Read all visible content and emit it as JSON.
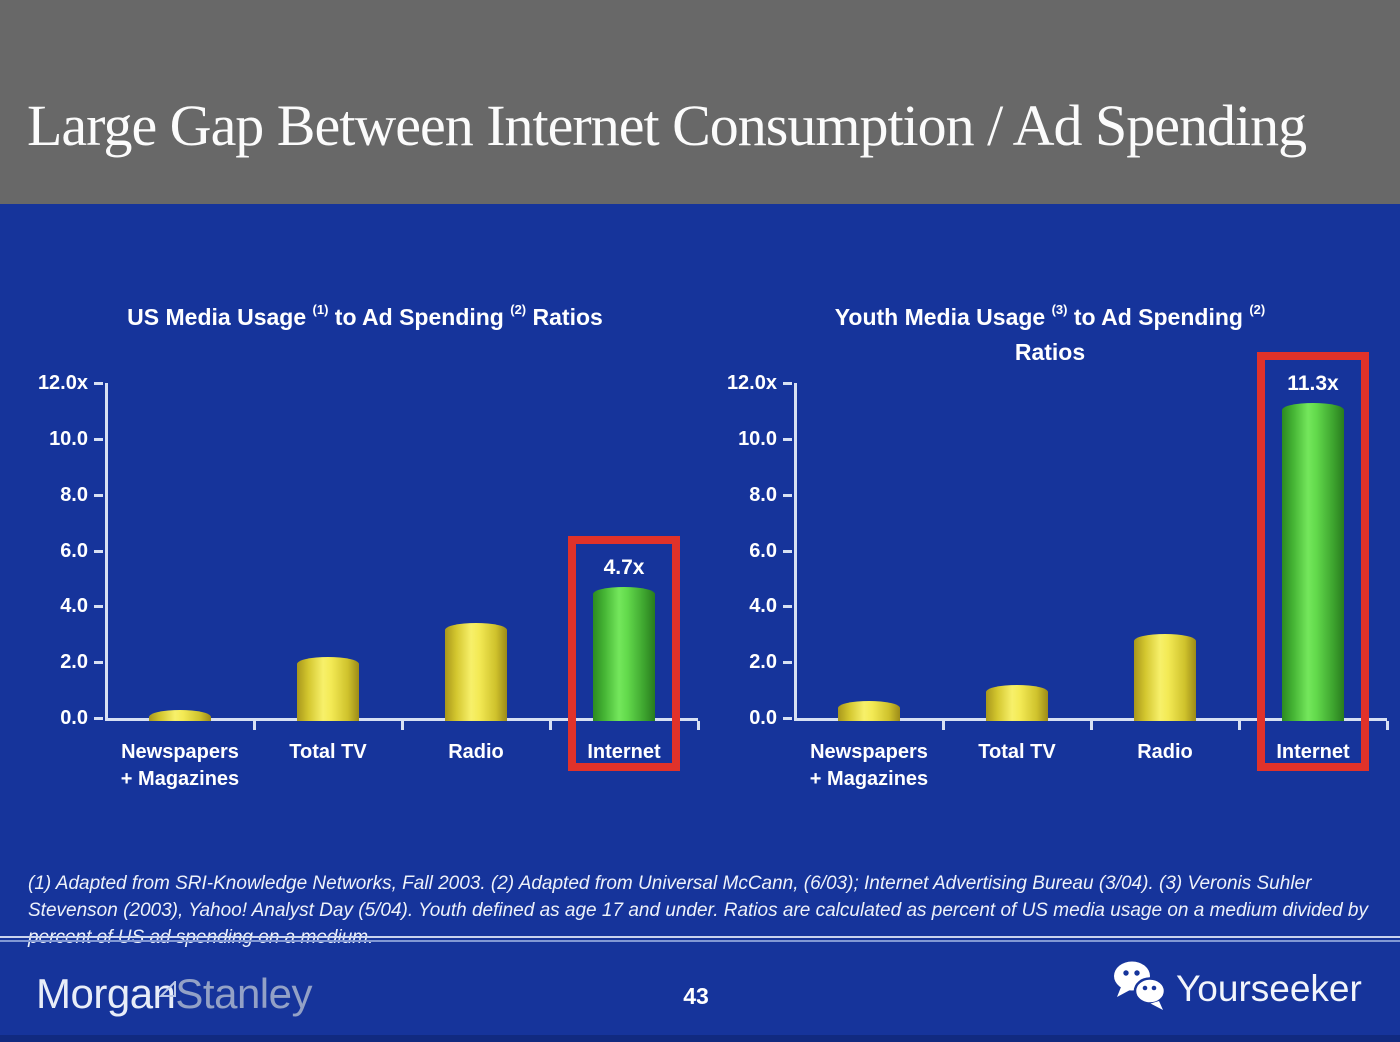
{
  "slide": {
    "title": "Large Gap Between Internet Consumption / Ad Spending",
    "page_number": "43",
    "footnote": "(1) Adapted from SRI-Knowledge Networks, Fall 2003.  (2) Adapted from Universal McCann, (6/03); Internet Advertising Bureau (3/04). (3) Veronis Suhler Stevenson (2003), Yahoo! Analyst Day (5/04).  Youth defined as age 17 and under.  Ratios are calculated as percent of US media usage on a medium divided by percent of US ad spending on a medium."
  },
  "footer": {
    "brand_left_1": "Morgan",
    "brand_left_2": "Stanley",
    "brand_right": "Yourseeker"
  },
  "colors": {
    "background_blue": "#16349B",
    "header_gray": "#686868",
    "bar_yellow": "#E8DC3C",
    "bar_green": "#55CC40",
    "highlight_red": "#E0322A",
    "axis_light": "#D7E0F3",
    "text_white": "#FFFFFF"
  },
  "chart_data": [
    {
      "type": "bar",
      "title": "US Media Usage (1) to Ad Spending (2) Ratios",
      "title_segments": [
        {
          "text": "US Media Usage "
        },
        {
          "text": "(1)",
          "sup": true
        },
        {
          "text": " to Ad Spending "
        },
        {
          "text": "(2)",
          "sup": true
        },
        {
          "text": " Ratios"
        }
      ],
      "categories": [
        "Newspapers\n+ Magazines",
        "Total TV",
        "Radio",
        "Internet"
      ],
      "values": [
        0.3,
        2.2,
        3.4,
        4.7
      ],
      "ymax": 12,
      "ytick_labels": [
        "12.0x",
        "10.0",
        "8.0",
        "6.0",
        "4.0",
        "2.0",
        "0.0"
      ],
      "highlight_index": 3,
      "highlight_label": "4.7x",
      "grid": false,
      "legend": false
    },
    {
      "type": "bar",
      "title": "Youth Media Usage (3) to Ad Spending (2) Ratios",
      "title_segments": [
        {
          "text": "Youth Media Usage "
        },
        {
          "text": "(3)",
          "sup": true
        },
        {
          "text": " to Ad Spending "
        },
        {
          "text": "(2)",
          "sup": true
        },
        {
          "text": "Ratios",
          "newline": true
        }
      ],
      "categories": [
        "Newspapers\n+ Magazines",
        "Total TV",
        "Radio",
        "Internet"
      ],
      "values": [
        0.6,
        1.2,
        3.0,
        11.3
      ],
      "ymax": 12,
      "ytick_labels": [
        "12.0x",
        "10.0",
        "8.0",
        "6.0",
        "4.0",
        "2.0",
        "0.0"
      ],
      "highlight_index": 3,
      "highlight_label": "11.3x",
      "grid": false,
      "legend": false
    }
  ]
}
